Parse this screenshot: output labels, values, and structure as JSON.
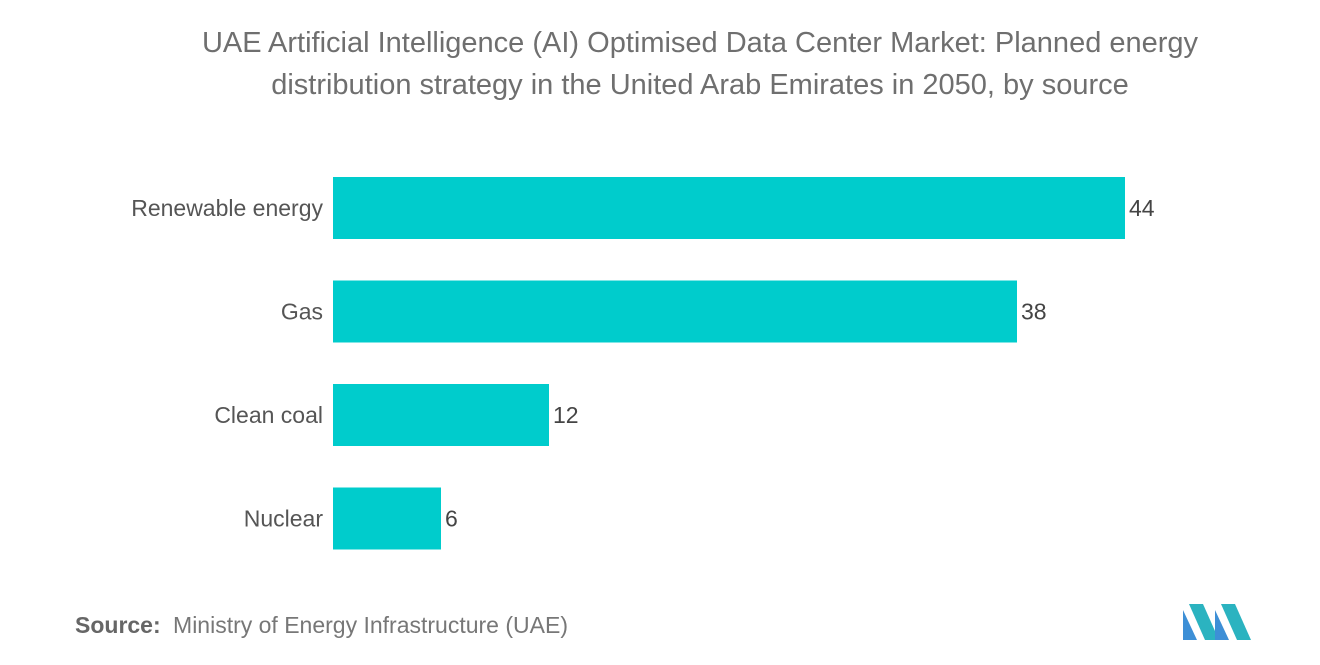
{
  "title_line1": "UAE Artificial Intelligence (AI) Optimised Data Center Market: Planned energy",
  "title_line2": "distribution strategy in the United Arab Emirates in 2050, by source",
  "source_label": "Source:",
  "source_text": "Ministry of Energy Infrastructure (UAE)",
  "bar_color": "#00cccc",
  "chart_data": {
    "type": "bar",
    "orientation": "horizontal",
    "title": "UAE Artificial Intelligence (AI) Optimised Data Center Market: Planned energy distribution strategy in the United Arab Emirates in 2050, by source",
    "categories": [
      "Renewable energy",
      "Gas",
      "Clean coal",
      "Nuclear"
    ],
    "values": [
      44,
      38,
      12,
      6
    ],
    "xlabel": "",
    "ylabel": "",
    "xlim": [
      0,
      44
    ],
    "grid": false,
    "legend": "none"
  }
}
